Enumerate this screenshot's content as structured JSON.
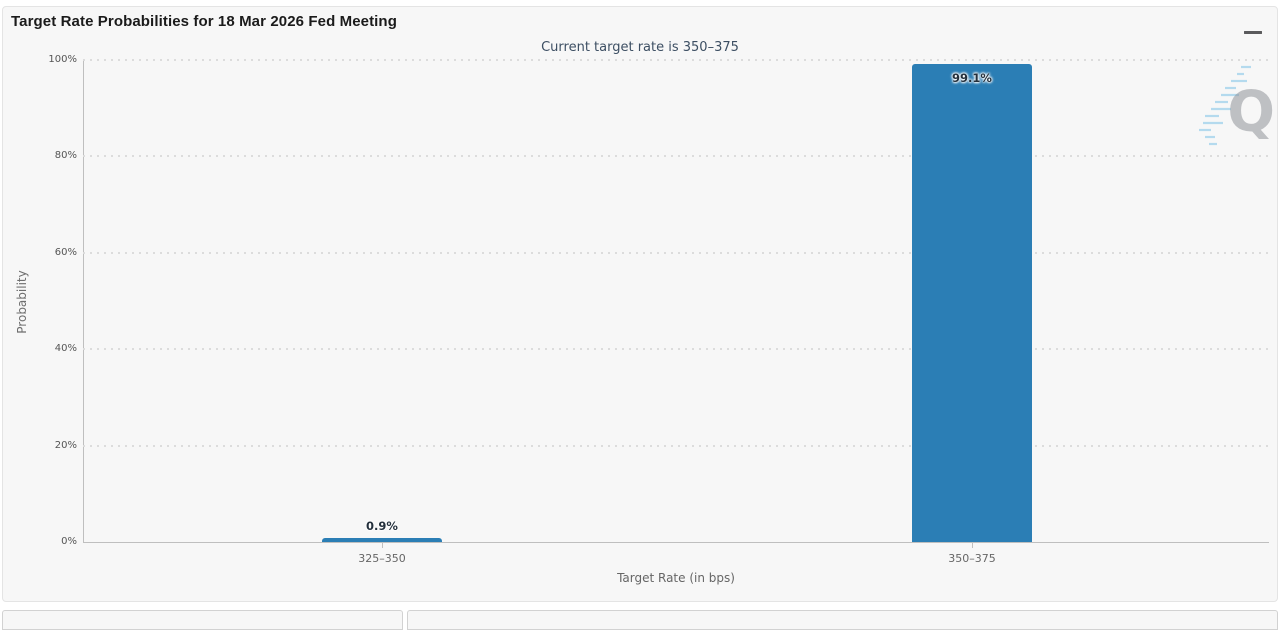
{
  "header": {
    "title": "Target Rate Probabilities for 18 Mar 2026 Fed Meeting",
    "menu_icon": "hamburger-menu-icon"
  },
  "chart_data": {
    "type": "bar",
    "title": "Target Rate Probabilities for 18 Mar 2026 Fed Meeting",
    "subtitle": "Current target rate is 350–375",
    "categories": [
      "325–350",
      "350–375"
    ],
    "values": [
      0.9,
      99.1
    ],
    "value_labels": [
      "0.9%",
      "99.1%"
    ],
    "xlabel": "Target Rate (in bps)",
    "ylabel": "Probability",
    "ylim": [
      0,
      100
    ],
    "ytick_labels": [
      "0%",
      "20%",
      "40%",
      "60%",
      "80%",
      "100%"
    ],
    "grid": "dotted-horizontal",
    "legend": "none",
    "bar_color": "#2b7eb5"
  },
  "watermark": {
    "letter": "Q"
  },
  "colors": {
    "bar": "#2b7eb5",
    "subtitle_text": "#3d4f63",
    "panel_background": "#f7f7f7",
    "axis_line": "#bfbfbf",
    "watermark_blue": "#7fc4e8"
  }
}
